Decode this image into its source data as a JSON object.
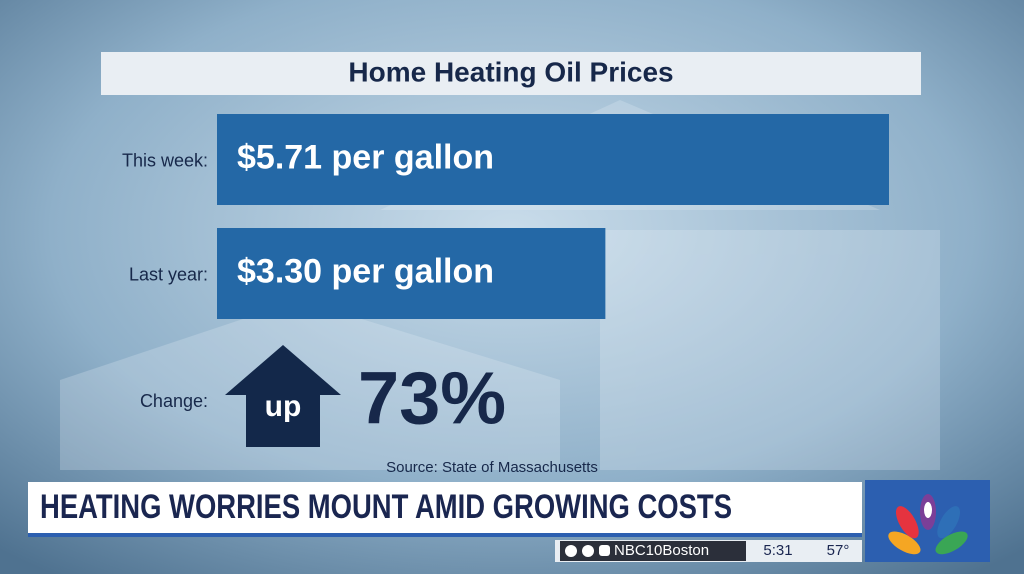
{
  "chart_data": {
    "type": "bar",
    "title": "Home Heating Oil Prices",
    "categories": [
      "This week:",
      "Last year:"
    ],
    "values": [
      5.71,
      3.3
    ],
    "value_labels": [
      "$5.71 per gallon",
      "$3.30 per gallon"
    ],
    "color": "#2468a6",
    "change": {
      "label": "Change:",
      "arrow": "up",
      "value": 73,
      "value_label": "73%"
    },
    "source": "Source: State of Massachusetts"
  },
  "ticker": {
    "headline": "HEATING WORRIES MOUNT AMID GROWING COSTS",
    "handle": "NBC10Boston",
    "time": "5:31",
    "temperature": "57°"
  }
}
